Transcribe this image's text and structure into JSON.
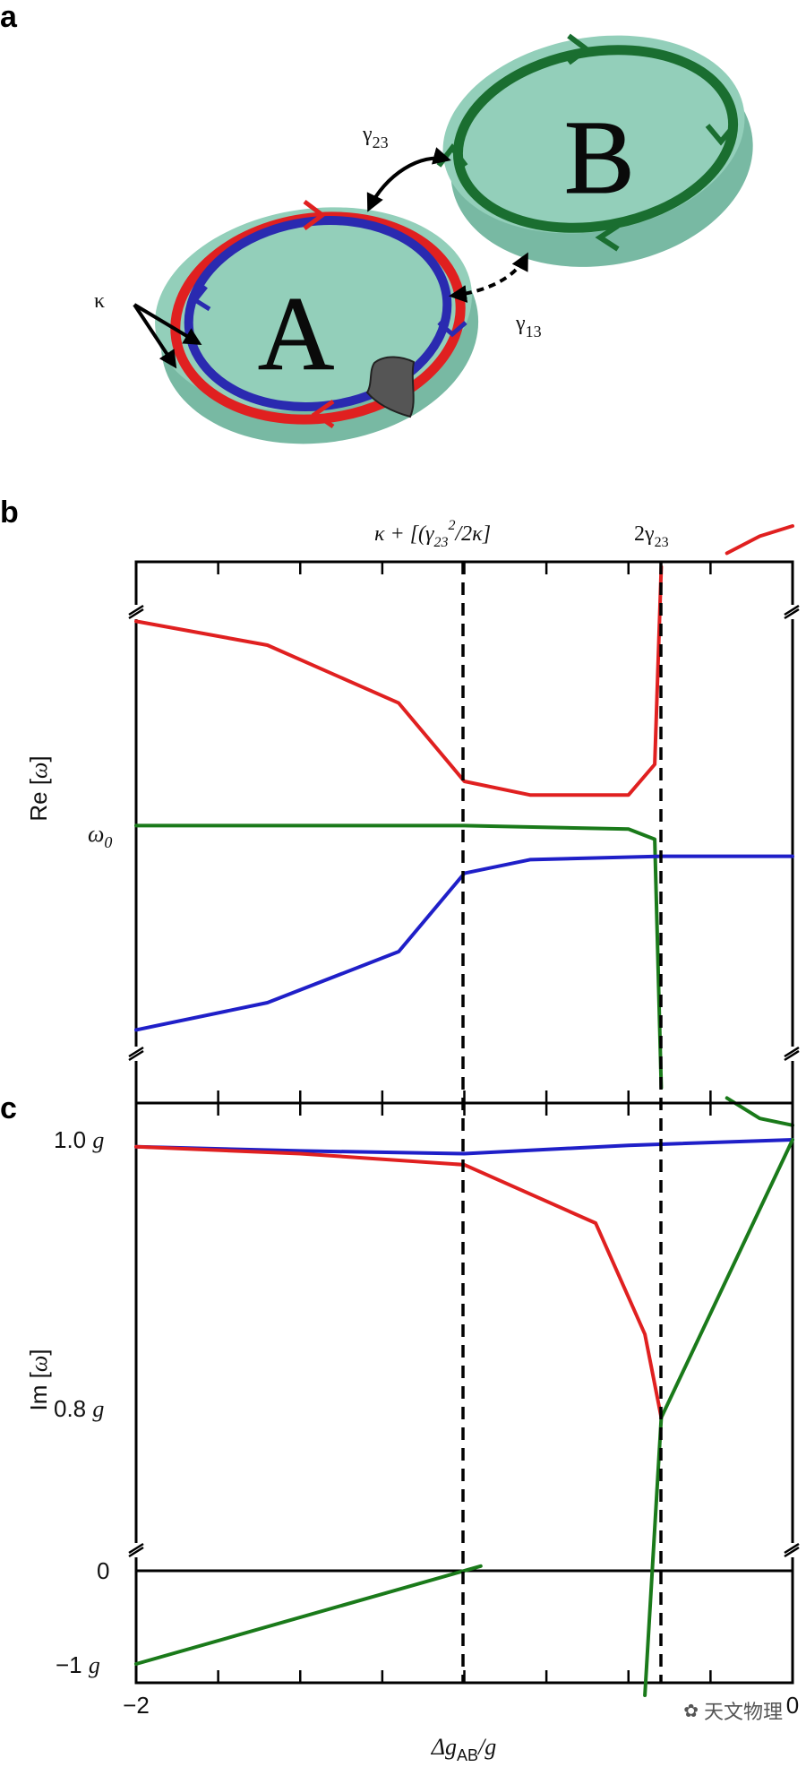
{
  "panels": {
    "a": "a",
    "b": "b",
    "c": "c"
  },
  "panel_a": {
    "resonator_a": "A",
    "resonator_b": "B",
    "label_gamma23": "γ",
    "label_gamma23_sub": "23",
    "label_gamma13": "γ",
    "label_gamma13_sub": "13",
    "label_kappa": "κ",
    "colors": {
      "disk": "#8fcbb6",
      "disk_edge": "#6fae98",
      "ring_cw": "#e02020",
      "ring_ccw": "#2a2ab0",
      "ring_b": "#1a6e30",
      "scatterer": "#555555"
    }
  },
  "panel_b": {
    "ylabel_main": "Re [",
    "ylabel_sym": "ω",
    "ylabel_close": "]",
    "omega0_label": "ω",
    "omega0_sub": "0",
    "annotation_left": "κ + [(γ",
    "annotation_left_sub": "23",
    "annotation_left_sup": "2",
    "annotation_left_tail": "/2κ]",
    "annotation_right": "2γ",
    "annotation_right_sub": "23"
  },
  "panel_c": {
    "ylabel_main": "Im [",
    "ylabel_sym": "ω",
    "ylabel_close": "]",
    "ytick_1": "1.0",
    "ytick_1_unit": "g",
    "ytick_08": "0.8",
    "ytick_08_unit": "g",
    "ytick_0": "0",
    "ytick_m1": "−1",
    "ytick_m1_unit": "g",
    "xtick_left": "−2",
    "xtick_right": "0",
    "xlabel": "Δg",
    "xlabel_sub": "AB",
    "xlabel_tail": "/g"
  },
  "chart_data": [
    {
      "type": "line",
      "panel": "b",
      "x_range": [
        -2,
        0
      ],
      "ylabel": "Re [ω]",
      "vlines": [
        -1,
        -0.4
      ],
      "series": [
        {
          "color": "#e02020",
          "points": [
            [
              -2,
              0.62
            ],
            [
              -1.6,
              0.55
            ],
            [
              -1.2,
              0.38
            ],
            [
              -1.0,
              0.15
            ],
            [
              -0.8,
              0.11
            ],
            [
              -0.5,
              0.11
            ],
            [
              -0.42,
              0.2
            ],
            [
              -0.4,
              0.78
            ]
          ]
        },
        {
          "color": "#e02020",
          "points": [
            [
              -0.2,
              0.82
            ],
            [
              -0.1,
              0.87
            ],
            [
              0,
              0.9
            ]
          ]
        },
        {
          "color": "#1a7a1a",
          "points": [
            [
              -2,
              0.02
            ],
            [
              -1.0,
              0.02
            ],
            [
              -0.5,
              0.01
            ],
            [
              -0.42,
              -0.02
            ],
            [
              -0.4,
              -0.75
            ]
          ]
        },
        {
          "color": "#1a7a1a",
          "points": [
            [
              -0.2,
              -0.78
            ],
            [
              -0.1,
              -0.84
            ],
            [
              0,
              -0.86
            ]
          ]
        },
        {
          "color": "#1f1fc8",
          "points": [
            [
              -2,
              -0.58
            ],
            [
              -1.6,
              -0.5
            ],
            [
              -1.2,
              -0.35
            ],
            [
              -1.0,
              -0.12
            ],
            [
              -0.8,
              -0.08
            ],
            [
              -0.4,
              -0.07
            ],
            [
              0,
              -0.07
            ]
          ]
        }
      ]
    },
    {
      "type": "line",
      "panel": "c",
      "x_range": [
        -2,
        0
      ],
      "ylabel": "Im [ω]",
      "yticks": [
        "1.0 g",
        "0.8 g",
        "0",
        "−1 g"
      ],
      "vlines": [
        -1,
        -0.4
      ],
      "series": [
        {
          "color": "#1f1fc8",
          "points": [
            [
              -2,
              0.995
            ],
            [
              -1.5,
              0.992
            ],
            [
              -1.0,
              0.99
            ],
            [
              -0.5,
              0.996
            ],
            [
              0,
              1.0
            ]
          ]
        },
        {
          "color": "#e02020",
          "points": [
            [
              -2,
              0.995
            ],
            [
              -1.5,
              0.99
            ],
            [
              -1.0,
              0.982
            ],
            [
              -0.6,
              0.94
            ],
            [
              -0.45,
              0.86
            ],
            [
              -0.4,
              0.8
            ]
          ]
        },
        {
          "color": "#1a7a1a",
          "points": [
            [
              -0.4,
              0.8
            ],
            [
              0,
              1.0
            ]
          ]
        },
        {
          "color": "#1a7a1a",
          "points": [
            [
              -0.45,
              0.6
            ],
            [
              -0.4,
              0.8
            ]
          ]
        },
        {
          "color": "#1a7a1a",
          "points": [
            [
              -2,
              -1
            ],
            [
              -0.95,
              0.05
            ]
          ]
        }
      ]
    }
  ],
  "watermark": "天文物理"
}
